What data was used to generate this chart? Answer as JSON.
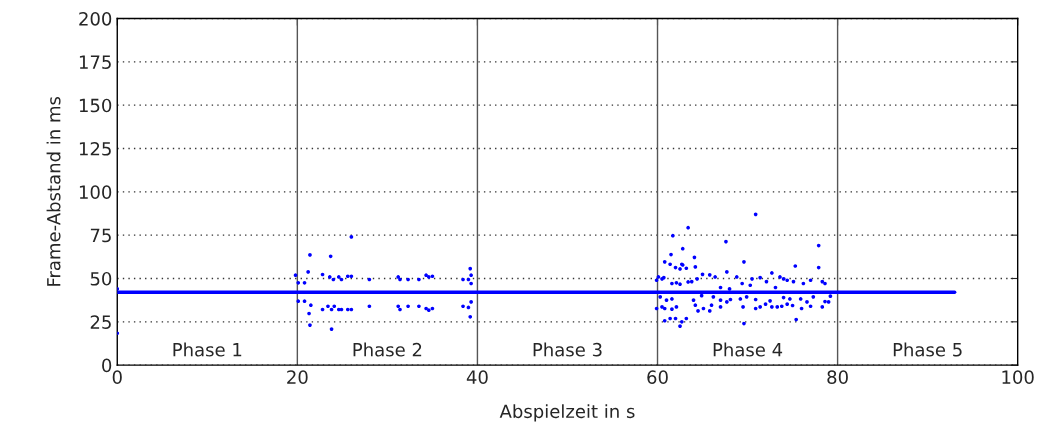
{
  "chart_data": {
    "type": "scatter",
    "xlabel": "Abspielzeit in s",
    "ylabel": "Frame-Abstand in ms",
    "xlim": [
      0,
      100
    ],
    "xticks": [
      0,
      20,
      40,
      60,
      80,
      100
    ],
    "ylim": [
      0,
      200
    ],
    "yticks": [
      0,
      25,
      50,
      75,
      100,
      125,
      150,
      175,
      200
    ],
    "grid": "y",
    "series": [
      {
        "type": "line",
        "marker": "none",
        "color": "#0000ff",
        "x": [
          0,
          93
        ],
        "values": [
          42,
          42
        ]
      },
      {
        "marker": "circle",
        "color": "#0000ff",
        "x": [
          0,
          0,
          26.0,
          21.4,
          23.7,
          19.8,
          21.2,
          20.1,
          20.8,
          20.1,
          20.8,
          22.8,
          23.6,
          24.0,
          24.6,
          24.9,
          25.6,
          26.0,
          22.8,
          23.4,
          23.8,
          24.1,
          24.6,
          24.9,
          25.6,
          26.0,
          21.5,
          21.3,
          21.4,
          23.8,
          28.0,
          28.0,
          31.2,
          31.4,
          31.2,
          31.4,
          32.3,
          32.3,
          33.5,
          33.5,
          34.3,
          34.6,
          35.0,
          34.3,
          34.6,
          35.0,
          38.4,
          39.2,
          39.3,
          39.0,
          39.3,
          38.4,
          39.0,
          39.3,
          39.2,
          70.9,
          63.4,
          61.7,
          67.6,
          77.9,
          62.8,
          61.5,
          64.1,
          60.8,
          69.6,
          61.4,
          62.7,
          62.8,
          62.0,
          62.5,
          63.2,
          64.2,
          67.7,
          77.9,
          75.3,
          60.1,
          60.5,
          60.7,
          65.0,
          65.8,
          66.4,
          68.8,
          70.5,
          71.4,
          72.7,
          73.6,
          74.0,
          59.9,
          61.6,
          62.1,
          62.5,
          63.4,
          63.8,
          64.4,
          67.0,
          68.0,
          69.4,
          70.3,
          72.1,
          73.1,
          74.4,
          75.1,
          76.2,
          77.0,
          78.3,
          78.6,
          60.3,
          61.0,
          61.6,
          64.0,
          64.9,
          66.2,
          67.0,
          68.1,
          69.2,
          69.9,
          70.9,
          72.5,
          74.0,
          74.7,
          75.9,
          77.3,
          78.6,
          79.2,
          59.9,
          60.5,
          60.8,
          61.6,
          62.1,
          64.2,
          64.5,
          65.1,
          66.0,
          65.8,
          67.0,
          67.7,
          69.5,
          70.9,
          71.4,
          72.0,
          72.7,
          73.3,
          73.8,
          74.4,
          75.0,
          76.0,
          76.6,
          77.0,
          78.3,
          79.0,
          60.8,
          61.4,
          62.0,
          62.5,
          62.7,
          63.2,
          69.6,
          75.4
        ],
        "values": [
          44,
          18.4,
          74.0,
          63.6,
          62.8,
          51.9,
          53.8,
          47.5,
          47.5,
          36.9,
          36.9,
          52.3,
          50.9,
          49.4,
          50.9,
          49.4,
          51.3,
          51.3,
          32.1,
          34.0,
          32.1,
          34.0,
          32.1,
          32.1,
          32.1,
          32.1,
          34.6,
          29.8,
          23.1,
          20.8,
          49.4,
          34.0,
          50.9,
          49.4,
          34.0,
          32.1,
          49.4,
          34.0,
          49.4,
          34.0,
          51.9,
          50.9,
          51.3,
          32.7,
          31.7,
          32.7,
          49.4,
          55.7,
          51.9,
          49.4,
          47.1,
          34.0,
          33.3,
          36.5,
          27.9,
          87.0,
          79.3,
          74.7,
          71.3,
          69.0,
          67.2,
          63.8,
          62.2,
          59.6,
          59.6,
          58.2,
          58.2,
          57.8,
          56.3,
          55.5,
          55.9,
          56.7,
          53.8,
          56.3,
          57.2,
          50.9,
          49.8,
          50.5,
          52.4,
          52.1,
          50.9,
          50.9,
          49.8,
          50.5,
          53.2,
          50.9,
          49.8,
          49.0,
          47.1,
          47.5,
          46.7,
          48.0,
          48.2,
          49.8,
          44.8,
          44.0,
          47.1,
          46.1,
          48.2,
          44.8,
          49.0,
          48.2,
          47.1,
          49.0,
          48.2,
          47.1,
          39.4,
          37.5,
          38.2,
          37.5,
          40.1,
          39.4,
          37.5,
          37.9,
          38.2,
          39.4,
          37.9,
          37.1,
          39.0,
          38.2,
          38.2,
          39.4,
          36.7,
          39.8,
          32.7,
          33.6,
          32.7,
          32.3,
          33.6,
          34.6,
          31.3,
          32.7,
          34.6,
          31.3,
          33.6,
          36.5,
          33.6,
          32.7,
          33.6,
          35.2,
          33.6,
          33.6,
          34.0,
          35.2,
          34.4,
          32.7,
          36.5,
          34.0,
          33.6,
          36.5,
          25.6,
          26.9,
          26.9,
          22.5,
          25.0,
          26.9,
          24.0,
          26.3
        ]
      }
    ],
    "ref_lines": [
      {
        "axis": "x",
        "value": 20,
        "color": "#555555"
      },
      {
        "axis": "x",
        "value": 40,
        "color": "#555555"
      },
      {
        "axis": "x",
        "value": 60,
        "color": "#555555"
      },
      {
        "axis": "x",
        "value": 80,
        "color": "#555555"
      }
    ],
    "annotations": [
      "Phase 1",
      "Phase 2",
      "Phase 3",
      "Phase 4",
      "Phase 5"
    ]
  }
}
